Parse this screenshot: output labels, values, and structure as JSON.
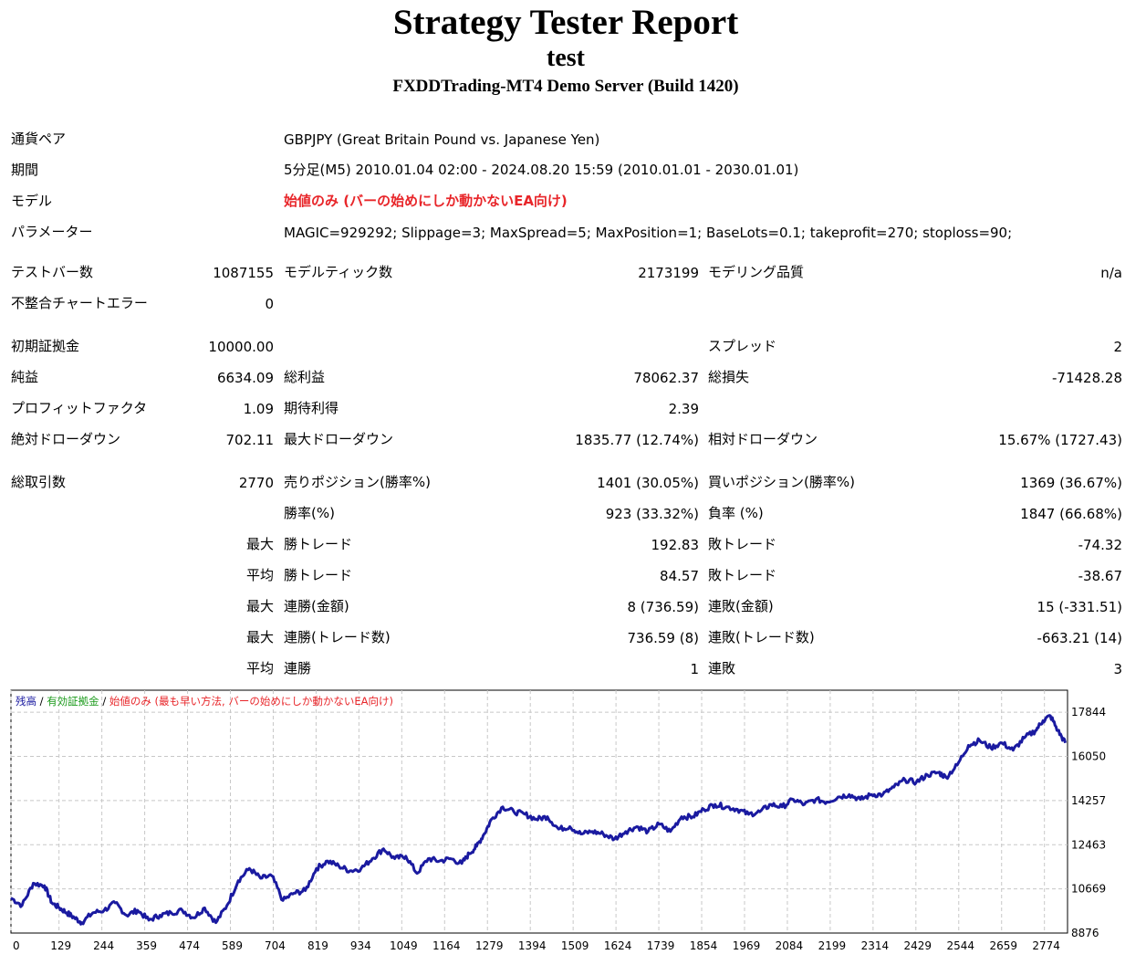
{
  "header": {
    "title": "Strategy Tester Report",
    "subtitle": "test",
    "server": "FXDDTrading-MT4 Demo Server (Build 1420)"
  },
  "info": {
    "pair_label": "通貨ペア",
    "pair_value": "GBPJPY (Great Britain Pound vs. Japanese Yen)",
    "period_label": "期間",
    "period_value": "5分足(M5) 2010.01.04 02:00 - 2024.08.20 15:59 (2010.01.01 - 2030.01.01)",
    "model_label": "モデル",
    "model_value": "始値のみ (バーの始めにしか動かないEA向け)",
    "params_label": "パラメーター",
    "params_value": "MAGIC=929292; Slippage=3; MaxSpread=5; MaxPosition=1; BaseLots=0.1; takeprofit=270; stoploss=90;"
  },
  "stats": {
    "bars_label": "テストバー数",
    "bars_value": "1087155",
    "ticks_label": "モデルティック数",
    "ticks_value": "2173199",
    "quality_label": "モデリング品質",
    "quality_value": "n/a",
    "mismatch_label": "不整合チャートエラー",
    "mismatch_value": "0",
    "deposit_label": "初期証拠金",
    "deposit_value": "10000.00",
    "spread_label": "スプレッド",
    "spread_value": "2",
    "net_label": "純益",
    "net_value": "6634.09",
    "gross_profit_label": "総利益",
    "gross_profit_value": "78062.37",
    "gross_loss_label": "総損失",
    "gross_loss_value": "-71428.28",
    "pf_label": "プロフィットファクタ",
    "pf_value": "1.09",
    "payoff_label": "期待利得",
    "payoff_value": "2.39",
    "abs_dd_label": "絶対ドローダウン",
    "abs_dd_value": "702.11",
    "max_dd_label": "最大ドローダウン",
    "max_dd_value": "1835.77 (12.74%)",
    "rel_dd_label": "相対ドローダウン",
    "rel_dd_value": "15.67% (1727.43)",
    "total_label": "総取引数",
    "total_value": "2770",
    "short_label": "売りポジション(勝率%)",
    "short_value": "1401 (30.05%)",
    "long_label": "買いポジション(勝率%)",
    "long_value": "1369 (36.67%)",
    "winrate_label": "勝率(%)",
    "winrate_value": "923 (33.32%)",
    "lossrate_label": "負率 (%)",
    "lossrate_value": "1847 (66.68%)",
    "max_label": "最大",
    "avg_label": "平均",
    "win_trade_label": "勝トレード",
    "loss_trade_label": "敗トレード",
    "largest_win_value": "192.83",
    "largest_loss_value": "-74.32",
    "avg_win_value": "84.57",
    "avg_loss_value": "-38.67",
    "cons_win_amount_label": "連勝(金額)",
    "cons_win_amount_value": "8 (736.59)",
    "cons_loss_amount_label": "連敗(金額)",
    "cons_loss_amount_value": "15 (-331.51)",
    "cons_win_trades_label": "連勝(トレード数)",
    "cons_win_trades_value": "736.59 (8)",
    "cons_loss_trades_label": "連敗(トレード数)",
    "cons_loss_trades_value": "-663.21 (14)",
    "avg_cons_win_label": "連勝",
    "avg_cons_win_value": "1",
    "avg_cons_loss_label": "連敗",
    "avg_cons_loss_value": "3"
  },
  "chart_data": {
    "type": "line",
    "legend": {
      "balance": "残高",
      "sep1": " / ",
      "equity": "有効証拠金",
      "sep2": " / ",
      "model": "始値のみ (最も早い方法, バーの始めにしか動かないEA向け)"
    },
    "colors": {
      "balance": "#1a1aa0",
      "equity": "#1a9a1a",
      "model": "#e8262a",
      "grid": "#c8c8c8"
    },
    "y_ticks": [
      "17844",
      "16050",
      "14257",
      "12463",
      "10669",
      "8876"
    ],
    "x_ticks": [
      "0",
      "129",
      "244",
      "359",
      "474",
      "589",
      "704",
      "819",
      "934",
      "1049",
      "1164",
      "1279",
      "1394",
      "1509",
      "1624",
      "1739",
      "1854",
      "1969",
      "2084",
      "2199",
      "2314",
      "2429",
      "2544",
      "2659",
      "2774"
    ],
    "ylim": [
      8876,
      18740
    ],
    "xlim": [
      0,
      2836
    ],
    "series": [
      {
        "name": "残高",
        "x": [
          0,
          30,
          60,
          90,
          110,
          130,
          150,
          170,
          190,
          220,
          250,
          280,
          310,
          340,
          370,
          400,
          430,
          460,
          490,
          520,
          550,
          580,
          610,
          640,
          670,
          700,
          730,
          760,
          790,
          820,
          850,
          880,
          910,
          940,
          970,
          1000,
          1030,
          1060,
          1090,
          1120,
          1150,
          1180,
          1210,
          1230,
          1250,
          1270,
          1290,
          1320,
          1350,
          1380,
          1410,
          1440,
          1470,
          1500,
          1530,
          1560,
          1590,
          1620,
          1650,
          1680,
          1710,
          1740,
          1770,
          1800,
          1830,
          1860,
          1890,
          1920,
          1950,
          1980,
          2010,
          2040,
          2070,
          2100,
          2130,
          2160,
          2190,
          2220,
          2250,
          2280,
          2310,
          2340,
          2370,
          2400,
          2430,
          2460,
          2490,
          2510,
          2540,
          2570,
          2600,
          2630,
          2660,
          2690,
          2720,
          2750,
          2770,
          2790,
          2810,
          2830
        ],
        "y": [
          10300,
          10000,
          10900,
          10800,
          10100,
          9900,
          9700,
          9500,
          9300,
          9700,
          9800,
          10100,
          9600,
          9800,
          9400,
          9600,
          9700,
          9800,
          9500,
          9900,
          9300,
          10000,
          11000,
          11500,
          11100,
          11200,
          10200,
          10500,
          10600,
          11500,
          11800,
          11600,
          11400,
          11500,
          11900,
          12300,
          11900,
          12000,
          11300,
          11900,
          11800,
          11900,
          11700,
          12100,
          12400,
          12900,
          13500,
          14000,
          13800,
          13700,
          13500,
          13600,
          13100,
          13200,
          12900,
          13000,
          12900,
          12700,
          13000,
          13200,
          13000,
          13300,
          13000,
          13600,
          13600,
          13900,
          14100,
          14000,
          13900,
          13700,
          13800,
          14100,
          14000,
          14300,
          14100,
          14300,
          14200,
          14400,
          14500,
          14300,
          14500,
          14500,
          14800,
          15100,
          15000,
          15300,
          15400,
          15200,
          15700,
          16500,
          16700,
          16400,
          16600,
          16300,
          16800,
          17100,
          17500,
          17700,
          17100,
          16600
        ]
      }
    ]
  }
}
